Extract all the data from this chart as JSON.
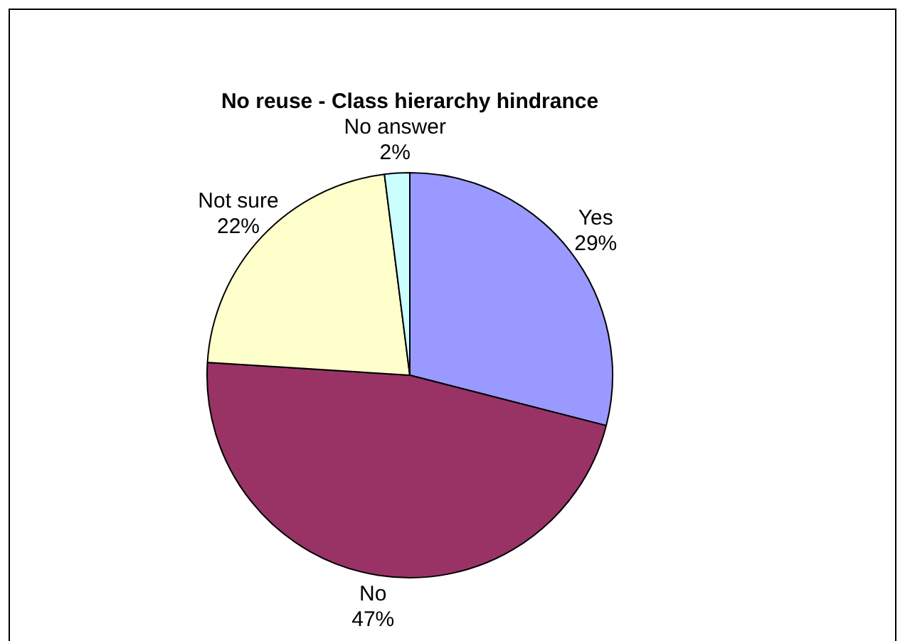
{
  "chart_data": {
    "type": "pie",
    "title": "No reuse - Class hierarchy hindrance",
    "categories": [
      "Yes",
      "No",
      "Not sure",
      "No answer"
    ],
    "values": [
      29,
      47,
      22,
      2
    ],
    "colors": [
      "#9999ff",
      "#993366",
      "#ffffcc",
      "#ccffff"
    ],
    "value_labels": [
      "29%",
      "47%",
      "22%",
      "2%"
    ],
    "legend": false
  }
}
